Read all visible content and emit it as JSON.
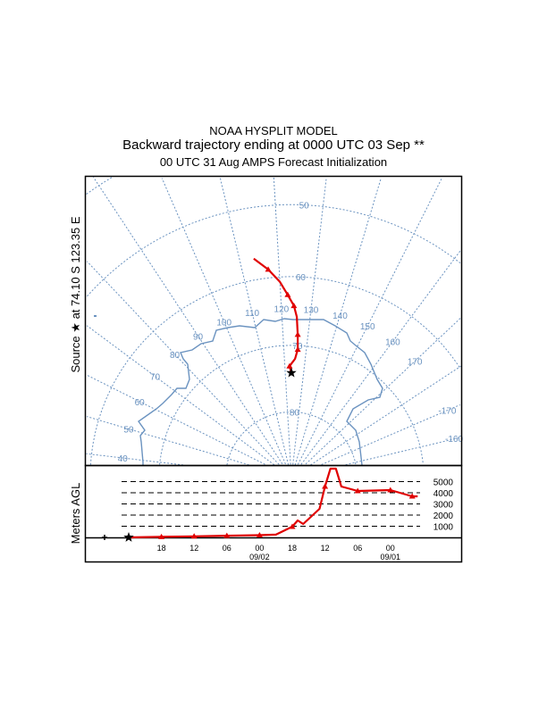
{
  "title": {
    "line1": "NOAA HYSPLIT MODEL",
    "line2": "Backward trajectory ending at 0000 UTC 03 Sep **",
    "line3": "00 UTC 31 Aug    AMPS  Forecast Initialization"
  },
  "source_label": {
    "prefix": "Source",
    "star": "★",
    "at": "at",
    "lat": "74.10 S",
    "lon": "123.35 E"
  },
  "source": {
    "lat": -74.1,
    "lon": 123.35
  },
  "colors": {
    "trajectory": "#e00000",
    "grid": "#6b93c0",
    "frame": "#000000"
  },
  "map": {
    "projection": "south polar stereographic",
    "latitude_labels": [
      "50",
      "60",
      "70",
      "80"
    ],
    "latitudes": [
      -50,
      -60,
      -70,
      -80
    ],
    "longitude_labels": [
      "40",
      "50",
      "60",
      "70",
      "80",
      "90",
      "100",
      "110",
      "120",
      "130",
      "140",
      "150",
      "160",
      "170",
      "-170",
      "-160"
    ],
    "longitudes": [
      40,
      50,
      60,
      70,
      80,
      90,
      100,
      110,
      120,
      130,
      140,
      150,
      160,
      170,
      -170,
      -160
    ],
    "trajectory": {
      "lat": [
        -74.1,
        -73.1,
        -72.0,
        -70.6,
        -68.4,
        -65.8,
        -64.2,
        -62.6,
        -60.7,
        -58.8,
        -57.0
      ],
      "lon": [
        123.35,
        122.4,
        125.1,
        126.2,
        125.9,
        125.3,
        124.2,
        122.2,
        120.0,
        117.0,
        113.6
      ]
    }
  },
  "chart_data": {
    "type": "line",
    "ylabel": "Meters AGL",
    "y_ticks": [
      "1000",
      "2000",
      "3000",
      "4000",
      "5000"
    ],
    "y_tick_values": [
      1000,
      2000,
      3000,
      4000,
      5000
    ],
    "x_ticks": [
      "18",
      "12",
      "06",
      "00",
      "18",
      "12",
      "06",
      "00"
    ],
    "x_tick_hours": [
      -6,
      -12,
      -18,
      -24,
      -30,
      -36,
      -42,
      -48
    ],
    "x_dates": [
      {
        "label": "09/02",
        "hour": -24
      },
      {
        "label": "09/01",
        "hour": -48
      }
    ],
    "series": [
      {
        "hours": [
          0,
          -6,
          -12,
          -18,
          -24,
          -27,
          -30,
          -31,
          -32,
          -35,
          -36,
          -37,
          -38,
          -39,
          -42,
          -48,
          -52,
          -53
        ],
        "heights": [
          0,
          50,
          100,
          150,
          200,
          250,
          960,
          1520,
          1200,
          2560,
          4560,
          6160,
          6160,
          4560,
          4160,
          4240,
          3680,
          3680
        ]
      }
    ]
  }
}
